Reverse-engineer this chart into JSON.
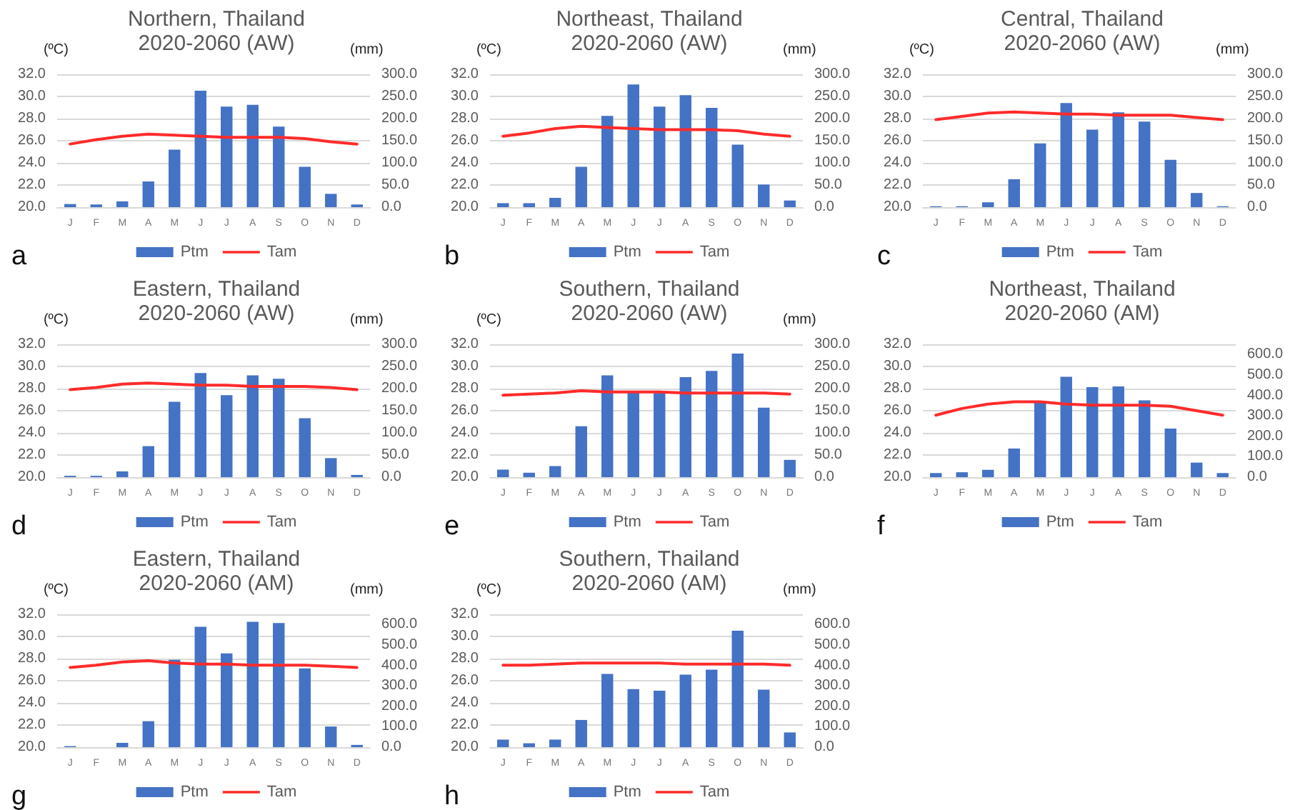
{
  "chart_data": [
    {
      "type": "bar",
      "title": "Northern, Thailand\n2020-2060 (AW)",
      "ylabel": "(ºC)",
      "y2label": "(mm)",
      "annotations": [
        "a"
      ],
      "categories": [
        "J",
        "F",
        "M",
        "A",
        "M",
        "J",
        "J",
        "A",
        "S",
        "O",
        "N",
        "D"
      ],
      "series": [
        {
          "name": "Ptm",
          "axis": "y2",
          "color": "#4472c4",
          "values": [
            7,
            6,
            13,
            58,
            130,
            263,
            227,
            231,
            182,
            91,
            30,
            6
          ]
        },
        {
          "name": "Tam",
          "type": "line",
          "color": "#ff2b2b",
          "values": [
            25.7,
            26.1,
            26.4,
            26.6,
            26.5,
            26.4,
            26.3,
            26.3,
            26.3,
            26.2,
            25.9,
            25.7
          ]
        }
      ],
      "ylim": [
        20,
        32
      ],
      "yticks": [
        {
          "value": 20,
          "label": "20.0"
        },
        {
          "value": 22,
          "label": "22.0"
        },
        {
          "value": 24,
          "label": "24.0"
        },
        {
          "value": 26,
          "label": "26.0"
        },
        {
          "value": 28,
          "label": "28.0"
        },
        {
          "value": 30,
          "label": "30.0"
        },
        {
          "value": 32,
          "label": "32.0"
        }
      ],
      "y2lim": [
        0,
        300
      ],
      "y2ticks": [
        {
          "value": 0,
          "label": "0.0"
        },
        {
          "value": 50,
          "label": "50.0"
        },
        {
          "value": 100,
          "label": "100.0"
        },
        {
          "value": 150,
          "label": "150.0"
        },
        {
          "value": 200,
          "label": "200.0"
        },
        {
          "value": 250,
          "label": "250.0"
        },
        {
          "value": 300,
          "label": "300.0"
        }
      ],
      "grid": "y",
      "legend": "bottom",
      "marker": "none"
    },
    {
      "type": "bar",
      "title": "Northeast, Thailand\n2020-2060 (AW)",
      "ylabel": "(ºC)",
      "y2label": "(mm)",
      "annotations": [
        "b"
      ],
      "categories": [
        "J",
        "F",
        "M",
        "A",
        "M",
        "J",
        "J",
        "A",
        "S",
        "O",
        "N",
        "D"
      ],
      "series": [
        {
          "name": "Ptm",
          "axis": "y2",
          "color": "#4472c4",
          "values": [
            9,
            9,
            21,
            91,
            206,
            277,
            227,
            253,
            224,
            141,
            51,
            15
          ]
        },
        {
          "name": "Tam",
          "type": "line",
          "color": "#ff2b2b",
          "values": [
            26.4,
            26.7,
            27.1,
            27.3,
            27.2,
            27.1,
            27.0,
            27.0,
            27.0,
            26.9,
            26.6,
            26.4
          ]
        }
      ],
      "ylim": [
        20,
        32
      ],
      "yticks": [
        {
          "value": 20,
          "label": "20.0"
        },
        {
          "value": 22,
          "label": "22.0"
        },
        {
          "value": 24,
          "label": "24.0"
        },
        {
          "value": 26,
          "label": "26.0"
        },
        {
          "value": 28,
          "label": "28.0"
        },
        {
          "value": 30,
          "label": "30.0"
        },
        {
          "value": 32,
          "label": "32.0"
        }
      ],
      "y2lim": [
        0,
        300
      ],
      "y2ticks": [
        {
          "value": 0,
          "label": "0.0"
        },
        {
          "value": 50,
          "label": "50.0"
        },
        {
          "value": 100,
          "label": "100.0"
        },
        {
          "value": 150,
          "label": "150.0"
        },
        {
          "value": 200,
          "label": "200.0"
        },
        {
          "value": 250,
          "label": "250.0"
        },
        {
          "value": 300,
          "label": "300.0"
        }
      ],
      "grid": "y",
      "legend": "bottom",
      "marker": "none"
    },
    {
      "type": "bar",
      "title": "Central, Thailand\n2020-2060 (AW)",
      "ylabel": "(ºC)",
      "y2label": "(mm)",
      "annotations": [
        "c"
      ],
      "categories": [
        "J",
        "F",
        "M",
        "A",
        "M",
        "J",
        "J",
        "A",
        "S",
        "O",
        "N",
        "D"
      ],
      "series": [
        {
          "name": "Ptm",
          "axis": "y2",
          "color": "#4472c4",
          "values": [
            2,
            2,
            11,
            63,
            144,
            235,
            175,
            214,
            193,
            107,
            32,
            2
          ]
        },
        {
          "name": "Tam",
          "type": "line",
          "color": "#ff2b2b",
          "values": [
            27.9,
            28.2,
            28.5,
            28.6,
            28.5,
            28.4,
            28.4,
            28.3,
            28.3,
            28.3,
            28.1,
            27.9
          ]
        }
      ],
      "ylim": [
        20,
        32
      ],
      "yticks": [
        {
          "value": 20,
          "label": "20.0"
        },
        {
          "value": 22,
          "label": "22.0"
        },
        {
          "value": 24,
          "label": "24.0"
        },
        {
          "value": 26,
          "label": "26.0"
        },
        {
          "value": 28,
          "label": "28.0"
        },
        {
          "value": 30,
          "label": "30.0"
        },
        {
          "value": 32,
          "label": "32.0"
        }
      ],
      "y2lim": [
        0,
        300
      ],
      "y2ticks": [
        {
          "value": 0,
          "label": "0.0"
        },
        {
          "value": 50,
          "label": "50.0"
        },
        {
          "value": 100,
          "label": "100.0"
        },
        {
          "value": 150,
          "label": "150.0"
        },
        {
          "value": 200,
          "label": "200.0"
        },
        {
          "value": 250,
          "label": "250.0"
        },
        {
          "value": 300,
          "label": "300.0"
        }
      ],
      "grid": "y",
      "legend": "bottom",
      "marker": "none"
    },
    {
      "type": "bar",
      "title": "Eastern, Thailand\n2020-2060 (AW)",
      "ylabel": "(ºC)",
      "y2label": "(mm)",
      "annotations": [
        "d"
      ],
      "categories": [
        "J",
        "F",
        "M",
        "A",
        "M",
        "J",
        "J",
        "A",
        "S",
        "O",
        "N",
        "D"
      ],
      "series": [
        {
          "name": "Ptm",
          "axis": "y2",
          "color": "#4472c4",
          "values": [
            3,
            3,
            13,
            70,
            170,
            235,
            185,
            230,
            222,
            133,
            43,
            5
          ]
        },
        {
          "name": "Tam",
          "type": "line",
          "color": "#ff2b2b",
          "values": [
            27.9,
            28.1,
            28.4,
            28.5,
            28.4,
            28.3,
            28.3,
            28.2,
            28.2,
            28.2,
            28.1,
            27.9
          ]
        }
      ],
      "ylim": [
        20,
        32
      ],
      "yticks": [
        {
          "value": 20,
          "label": "20.0"
        },
        {
          "value": 22,
          "label": "22.0"
        },
        {
          "value": 24,
          "label": "24.0"
        },
        {
          "value": 26,
          "label": "26.0"
        },
        {
          "value": 28,
          "label": "28.0"
        },
        {
          "value": 30,
          "label": "30.0"
        },
        {
          "value": 32,
          "label": "32.0"
        }
      ],
      "y2lim": [
        0,
        300
      ],
      "y2ticks": [
        {
          "value": 0,
          "label": "0.0"
        },
        {
          "value": 50,
          "label": "50.0"
        },
        {
          "value": 100,
          "label": "100.0"
        },
        {
          "value": 150,
          "label": "150.0"
        },
        {
          "value": 200,
          "label": "200.0"
        },
        {
          "value": 250,
          "label": "250.0"
        },
        {
          "value": 300,
          "label": "300.0"
        }
      ],
      "grid": "y",
      "legend": "bottom",
      "marker": "none"
    },
    {
      "type": "bar",
      "title": "Southern, Thailand\n2020-2060 (AW)",
      "ylabel": "(ºC)",
      "y2label": "(mm)",
      "annotations": [
        "e"
      ],
      "categories": [
        "J",
        "F",
        "M",
        "A",
        "M",
        "J",
        "J",
        "A",
        "S",
        "O",
        "N",
        "D"
      ],
      "series": [
        {
          "name": "Ptm",
          "axis": "y2",
          "color": "#4472c4",
          "values": [
            17,
            10,
            25,
            115,
            230,
            191,
            190,
            226,
            240,
            279,
            157,
            39
          ]
        },
        {
          "name": "Tam",
          "type": "line",
          "color": "#ff2b2b",
          "values": [
            27.4,
            27.5,
            27.6,
            27.8,
            27.7,
            27.7,
            27.7,
            27.6,
            27.6,
            27.6,
            27.6,
            27.5
          ]
        }
      ],
      "ylim": [
        20,
        32
      ],
      "yticks": [
        {
          "value": 20,
          "label": "20.0"
        },
        {
          "value": 22,
          "label": "22.0"
        },
        {
          "value": 24,
          "label": "24.0"
        },
        {
          "value": 26,
          "label": "26.0"
        },
        {
          "value": 28,
          "label": "28.0"
        },
        {
          "value": 30,
          "label": "30.0"
        },
        {
          "value": 32,
          "label": "32.0"
        }
      ],
      "y2lim": [
        0,
        300
      ],
      "y2ticks": [
        {
          "value": 0,
          "label": "0.0"
        },
        {
          "value": 50,
          "label": "50.0"
        },
        {
          "value": 100,
          "label": "100.0"
        },
        {
          "value": 150,
          "label": "150.0"
        },
        {
          "value": 200,
          "label": "200.0"
        },
        {
          "value": 250,
          "label": "250.0"
        },
        {
          "value": 300,
          "label": "300.0"
        }
      ],
      "grid": "y",
      "legend": "bottom",
      "marker": "none"
    },
    {
      "type": "bar",
      "title": "Northeast, Thailand\n2020-2060 (AM)",
      "annotations": [
        "f"
      ],
      "categories": [
        "J",
        "F",
        "M",
        "A",
        "M",
        "J",
        "J",
        "A",
        "S",
        "O",
        "N",
        "D"
      ],
      "series": [
        {
          "name": "Ptm",
          "axis": "y2",
          "color": "#4472c4",
          "values": [
            20,
            24,
            36,
            140,
            364,
            491,
            440,
            444,
            376,
            238,
            71,
            20
          ]
        },
        {
          "name": "Tam",
          "type": "line",
          "color": "#ff2b2b",
          "values": [
            25.6,
            26.2,
            26.6,
            26.8,
            26.8,
            26.6,
            26.5,
            26.5,
            26.5,
            26.4,
            26.0,
            25.6
          ]
        }
      ],
      "ylim": [
        20,
        32
      ],
      "yticks": [
        {
          "value": 20,
          "label": "20.0"
        },
        {
          "value": 22,
          "label": "22.0"
        },
        {
          "value": 24,
          "label": "24.0"
        },
        {
          "value": 26,
          "label": "26.0"
        },
        {
          "value": 28,
          "label": "28.0"
        },
        {
          "value": 30,
          "label": "30.0"
        },
        {
          "value": 32,
          "label": "32.0"
        }
      ],
      "y2lim": [
        0,
        650
      ],
      "y2ticks": [
        {
          "value": 0,
          "label": "0.0"
        },
        {
          "value": 100,
          "label": "100.0"
        },
        {
          "value": 200,
          "label": "200.0"
        },
        {
          "value": 300,
          "label": "300.0"
        },
        {
          "value": 400,
          "label": "400.0"
        },
        {
          "value": 500,
          "label": "500.0"
        },
        {
          "value": 600,
          "label": "600.0"
        }
      ],
      "grid": "y",
      "legend": "bottom",
      "marker": "none"
    },
    {
      "type": "bar",
      "title": "Eastern, Thailand\n2020-2060 (AM)",
      "ylabel": "(ºC)",
      "y2label": "(mm)",
      "annotations": [
        "g"
      ],
      "categories": [
        "J",
        "F",
        "M",
        "A",
        "M",
        "J",
        "J",
        "A",
        "S",
        "O",
        "N",
        "D"
      ],
      "series": [
        {
          "name": "Ptm",
          "axis": "y2",
          "color": "#4472c4",
          "values": [
            5,
            0,
            21,
            127,
            427,
            589,
            459,
            613,
            607,
            385,
            101,
            11
          ]
        },
        {
          "name": "Tam",
          "type": "line",
          "color": "#ff2b2b",
          "values": [
            27.2,
            27.4,
            27.7,
            27.8,
            27.6,
            27.5,
            27.5,
            27.4,
            27.4,
            27.4,
            27.3,
            27.2
          ]
        }
      ],
      "ylim": [
        20,
        32
      ],
      "yticks": [
        {
          "value": 20,
          "label": "20.0"
        },
        {
          "value": 22,
          "label": "22.0"
        },
        {
          "value": 24,
          "label": "24.0"
        },
        {
          "value": 26,
          "label": "26.0"
        },
        {
          "value": 28,
          "label": "28.0"
        },
        {
          "value": 30,
          "label": "30.0"
        },
        {
          "value": 32,
          "label": "32.0"
        }
      ],
      "y2lim": [
        0,
        650
      ],
      "y2ticks": [
        {
          "value": 0,
          "label": "0.0"
        },
        {
          "value": 100,
          "label": "100.0"
        },
        {
          "value": 200,
          "label": "200.0"
        },
        {
          "value": 300,
          "label": "300.0"
        },
        {
          "value": 400,
          "label": "400.0"
        },
        {
          "value": 500,
          "label": "500.0"
        },
        {
          "value": 600,
          "label": "600.0"
        }
      ],
      "grid": "y",
      "legend": "bottom",
      "marker": "none"
    },
    {
      "type": "bar",
      "title": "Southern, Thailand\n2020-2060 (AM)",
      "ylabel": "(ºC)",
      "y2label": "(mm)",
      "annotations": [
        "h"
      ],
      "categories": [
        "J",
        "F",
        "M",
        "A",
        "M",
        "J",
        "J",
        "A",
        "S",
        "O",
        "N",
        "D"
      ],
      "series": [
        {
          "name": "Ptm",
          "axis": "y2",
          "color": "#4472c4",
          "values": [
            37,
            19,
            37,
            133,
            358,
            284,
            276,
            355,
            379,
            570,
            281,
            72
          ]
        },
        {
          "name": "Tam",
          "type": "line",
          "color": "#ff2b2b",
          "values": [
            27.4,
            27.4,
            27.5,
            27.6,
            27.6,
            27.6,
            27.6,
            27.5,
            27.5,
            27.5,
            27.5,
            27.4
          ]
        }
      ],
      "ylim": [
        20,
        32
      ],
      "yticks": [
        {
          "value": 20,
          "label": "20.0"
        },
        {
          "value": 22,
          "label": "22.0"
        },
        {
          "value": 24,
          "label": "24.0"
        },
        {
          "value": 26,
          "label": "26.0"
        },
        {
          "value": 28,
          "label": "28.0"
        },
        {
          "value": 30,
          "label": "30.0"
        },
        {
          "value": 32,
          "label": "32.0"
        }
      ],
      "y2lim": [
        0,
        650
      ],
      "y2ticks": [
        {
          "value": 0,
          "label": "0.0"
        },
        {
          "value": 100,
          "label": "100.0"
        },
        {
          "value": 200,
          "label": "200.0"
        },
        {
          "value": 300,
          "label": "300.0"
        },
        {
          "value": 400,
          "label": "400.0"
        },
        {
          "value": 500,
          "label": "500.0"
        },
        {
          "value": 600,
          "label": "600.0"
        }
      ],
      "grid": "y",
      "legend": "bottom",
      "marker": "none"
    }
  ]
}
